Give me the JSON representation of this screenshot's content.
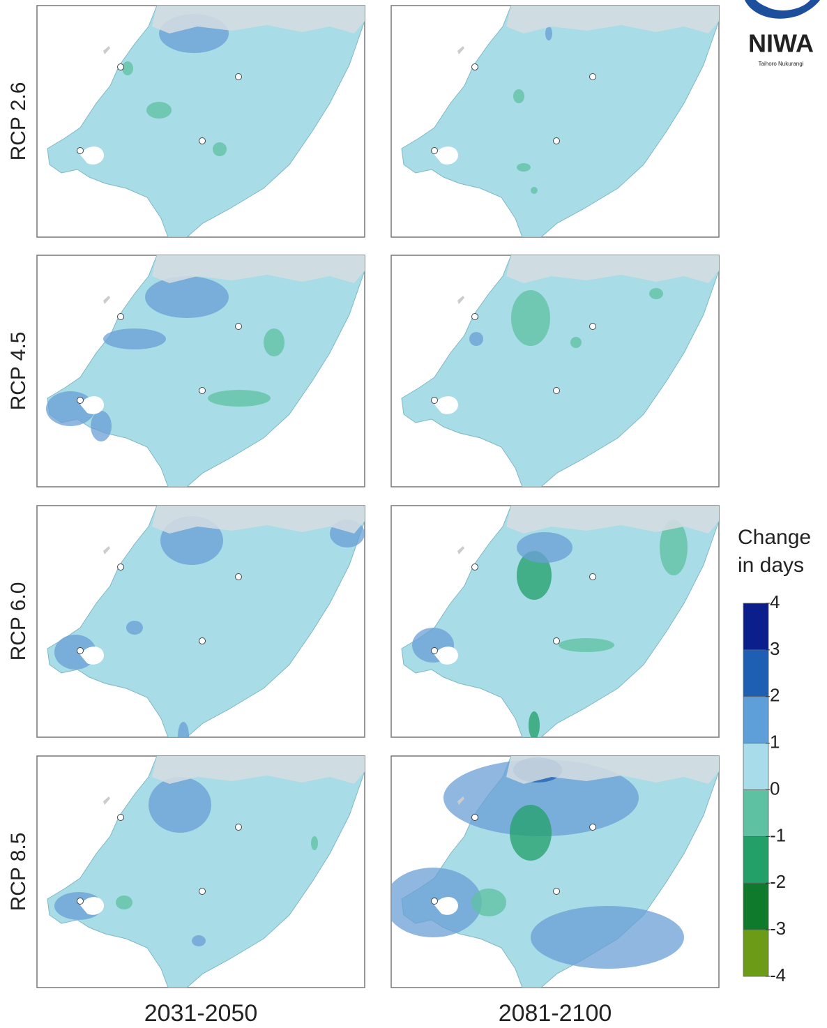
{
  "rows": [
    "RCP 2.6",
    "RCP 4.5",
    "RCP 6.0",
    "RCP 8.5"
  ],
  "columns": [
    "2031-2050",
    "2081-2100"
  ],
  "legend": {
    "title": [
      "Change",
      "in days"
    ],
    "ticks": [
      4,
      3,
      2,
      1,
      0,
      -1,
      -2,
      -3,
      -4
    ],
    "colors": [
      "#0b1f8c",
      "#1f5fb3",
      "#5f9fd9",
      "#a8dcea",
      "#5ec2a2",
      "#22a068",
      "#0f7a2c",
      "#6c9b18"
    ]
  },
  "logo": {
    "name": "NIWA",
    "tagline": "Taihoro Nukurangi"
  }
}
